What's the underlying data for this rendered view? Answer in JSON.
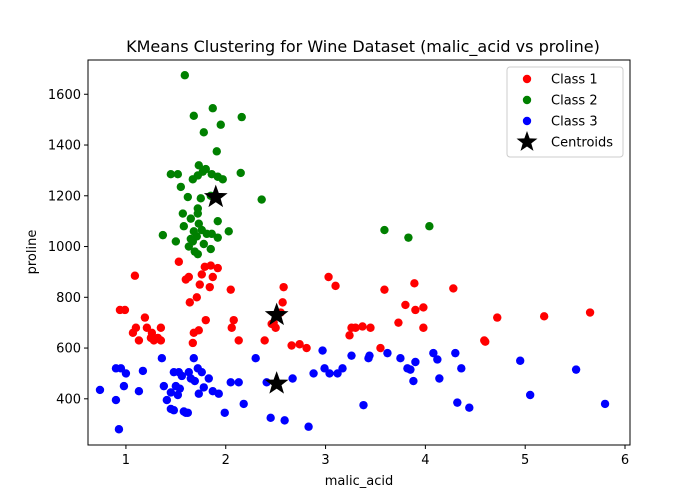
{
  "chart_data": {
    "type": "scatter",
    "title": "KMeans Clustering for Wine Dataset (malic_acid vs proline)",
    "xlabel": "malic_acid",
    "ylabel": "proline",
    "xlim": [
      0.62,
      6.05
    ],
    "ylim": [
      218,
      1735
    ],
    "xticks": [
      1,
      2,
      3,
      4,
      5,
      6
    ],
    "yticks": [
      400,
      600,
      800,
      1000,
      1200,
      1400,
      1600
    ],
    "legend_position": "top-right",
    "series": [
      {
        "name": "Class 1",
        "color": "#ff0000",
        "points": [
          [
            0.94,
            750
          ],
          [
            0.99,
            750
          ],
          [
            1.07,
            660
          ],
          [
            1.1,
            680
          ],
          [
            1.13,
            630
          ],
          [
            1.19,
            720
          ],
          [
            1.21,
            680
          ],
          [
            1.25,
            640
          ],
          [
            1.26,
            660
          ],
          [
            1.28,
            630
          ],
          [
            1.32,
            640
          ],
          [
            1.35,
            680
          ],
          [
            1.35,
            630
          ],
          [
            1.09,
            885
          ],
          [
            1.53,
            940
          ],
          [
            1.6,
            870
          ],
          [
            1.63,
            880
          ],
          [
            1.64,
            780
          ],
          [
            1.67,
            620
          ],
          [
            1.68,
            660
          ],
          [
            1.71,
            800
          ],
          [
            1.73,
            670
          ],
          [
            1.74,
            850
          ],
          [
            1.76,
            890
          ],
          [
            1.79,
            920
          ],
          [
            1.8,
            710
          ],
          [
            1.84,
            840
          ],
          [
            1.85,
            925
          ],
          [
            1.87,
            880
          ],
          [
            1.92,
            915
          ],
          [
            2.05,
            830
          ],
          [
            2.06,
            680
          ],
          [
            2.08,
            710
          ],
          [
            2.13,
            630
          ],
          [
            2.39,
            630
          ],
          [
            2.46,
            695
          ],
          [
            2.48,
            700
          ],
          [
            2.5,
            680
          ],
          [
            2.55,
            740
          ],
          [
            2.57,
            780
          ],
          [
            2.58,
            840
          ],
          [
            2.66,
            610
          ],
          [
            2.74,
            615
          ],
          [
            2.81,
            600
          ],
          [
            3.03,
            880
          ],
          [
            3.1,
            845
          ],
          [
            3.24,
            650
          ],
          [
            3.26,
            680
          ],
          [
            3.3,
            680
          ],
          [
            3.37,
            685
          ],
          [
            3.45,
            680
          ],
          [
            3.55,
            600
          ],
          [
            3.59,
            830
          ],
          [
            3.73,
            700
          ],
          [
            3.8,
            770
          ],
          [
            3.89,
            855
          ],
          [
            3.9,
            750
          ],
          [
            3.98,
            760
          ],
          [
            3.98,
            680
          ],
          [
            4.28,
            835
          ],
          [
            4.59,
            630
          ],
          [
            4.6,
            625
          ],
          [
            4.72,
            720
          ],
          [
            5.19,
            725
          ],
          [
            5.65,
            740
          ]
        ]
      },
      {
        "name": "Class 2",
        "color": "#008000",
        "points": [
          [
            1.59,
            1675
          ],
          [
            1.68,
            1515
          ],
          [
            1.87,
            1545
          ],
          [
            1.95,
            1480
          ],
          [
            2.16,
            1510
          ],
          [
            1.78,
            1450
          ],
          [
            1.91,
            1375
          ],
          [
            1.73,
            1320
          ],
          [
            1.8,
            1305
          ],
          [
            1.77,
            1295
          ],
          [
            1.86,
            1285
          ],
          [
            1.92,
            1275
          ],
          [
            1.97,
            1265
          ],
          [
            2.15,
            1290
          ],
          [
            1.45,
            1285
          ],
          [
            1.52,
            1285
          ],
          [
            1.67,
            1265
          ],
          [
            1.72,
            1280
          ],
          [
            1.55,
            1235
          ],
          [
            1.75,
            1190
          ],
          [
            2.36,
            1185
          ],
          [
            1.62,
            1195
          ],
          [
            1.85,
            1200
          ],
          [
            1.92,
            1100
          ],
          [
            1.72,
            1150
          ],
          [
            1.72,
            1130
          ],
          [
            1.57,
            1130
          ],
          [
            1.58,
            1080
          ],
          [
            1.65,
            1110
          ],
          [
            1.73,
            1090
          ],
          [
            1.76,
            1065
          ],
          [
            1.81,
            1050
          ],
          [
            1.86,
            1050
          ],
          [
            1.68,
            1060
          ],
          [
            1.71,
            1040
          ],
          [
            1.65,
            1030
          ],
          [
            1.67,
            1020
          ],
          [
            1.37,
            1045
          ],
          [
            1.5,
            1020
          ],
          [
            1.63,
            1000
          ],
          [
            1.69,
            980
          ],
          [
            1.72,
            970
          ],
          [
            1.78,
            1010
          ],
          [
            1.85,
            990
          ],
          [
            1.92,
            1035
          ],
          [
            2.03,
            1060
          ],
          [
            3.59,
            1065
          ],
          [
            3.83,
            1035
          ],
          [
            4.04,
            1080
          ]
        ]
      },
      {
        "name": "Class 3",
        "color": "#0000ff",
        "points": [
          [
            0.74,
            435
          ],
          [
            0.9,
            520
          ],
          [
            0.95,
            520
          ],
          [
            0.9,
            395
          ],
          [
            0.93,
            280
          ],
          [
            0.98,
            450
          ],
          [
            1.0,
            500
          ],
          [
            1.13,
            430
          ],
          [
            1.17,
            510
          ],
          [
            1.36,
            560
          ],
          [
            1.38,
            450
          ],
          [
            1.41,
            395
          ],
          [
            1.45,
            425
          ],
          [
            1.45,
            360
          ],
          [
            1.48,
            505
          ],
          [
            1.48,
            355
          ],
          [
            1.5,
            450
          ],
          [
            1.52,
            415
          ],
          [
            1.53,
            505
          ],
          [
            1.54,
            440
          ],
          [
            1.56,
            490
          ],
          [
            1.58,
            350
          ],
          [
            1.6,
            345
          ],
          [
            1.62,
            345
          ],
          [
            1.63,
            505
          ],
          [
            1.65,
            480
          ],
          [
            1.68,
            560
          ],
          [
            1.69,
            470
          ],
          [
            1.72,
            520
          ],
          [
            1.73,
            420
          ],
          [
            1.76,
            505
          ],
          [
            1.78,
            445
          ],
          [
            1.83,
            480
          ],
          [
            1.87,
            430
          ],
          [
            1.93,
            420
          ],
          [
            1.99,
            345
          ],
          [
            2.05,
            465
          ],
          [
            2.13,
            465
          ],
          [
            2.18,
            380
          ],
          [
            2.3,
            560
          ],
          [
            2.41,
            465
          ],
          [
            2.45,
            325
          ],
          [
            2.59,
            315
          ],
          [
            2.67,
            480
          ],
          [
            2.83,
            290
          ],
          [
            2.88,
            500
          ],
          [
            2.97,
            590
          ],
          [
            2.99,
            520
          ],
          [
            3.04,
            500
          ],
          [
            3.12,
            500
          ],
          [
            3.17,
            520
          ],
          [
            3.26,
            570
          ],
          [
            3.38,
            375
          ],
          [
            3.43,
            560
          ],
          [
            3.44,
            570
          ],
          [
            3.62,
            580
          ],
          [
            3.75,
            560
          ],
          [
            3.82,
            520
          ],
          [
            3.85,
            515
          ],
          [
            3.88,
            470
          ],
          [
            3.9,
            545
          ],
          [
            4.08,
            580
          ],
          [
            4.12,
            555
          ],
          [
            4.14,
            480
          ],
          [
            4.3,
            580
          ],
          [
            4.32,
            385
          ],
          [
            4.36,
            520
          ],
          [
            4.44,
            365
          ],
          [
            4.95,
            550
          ],
          [
            5.05,
            415
          ],
          [
            5.51,
            515
          ],
          [
            5.8,
            380
          ]
        ]
      }
    ],
    "centroids": {
      "name": "Centroids",
      "color": "#000000",
      "points": [
        [
          1.9,
          1195
        ],
        [
          2.51,
          730
        ],
        [
          2.51,
          460
        ]
      ]
    }
  }
}
